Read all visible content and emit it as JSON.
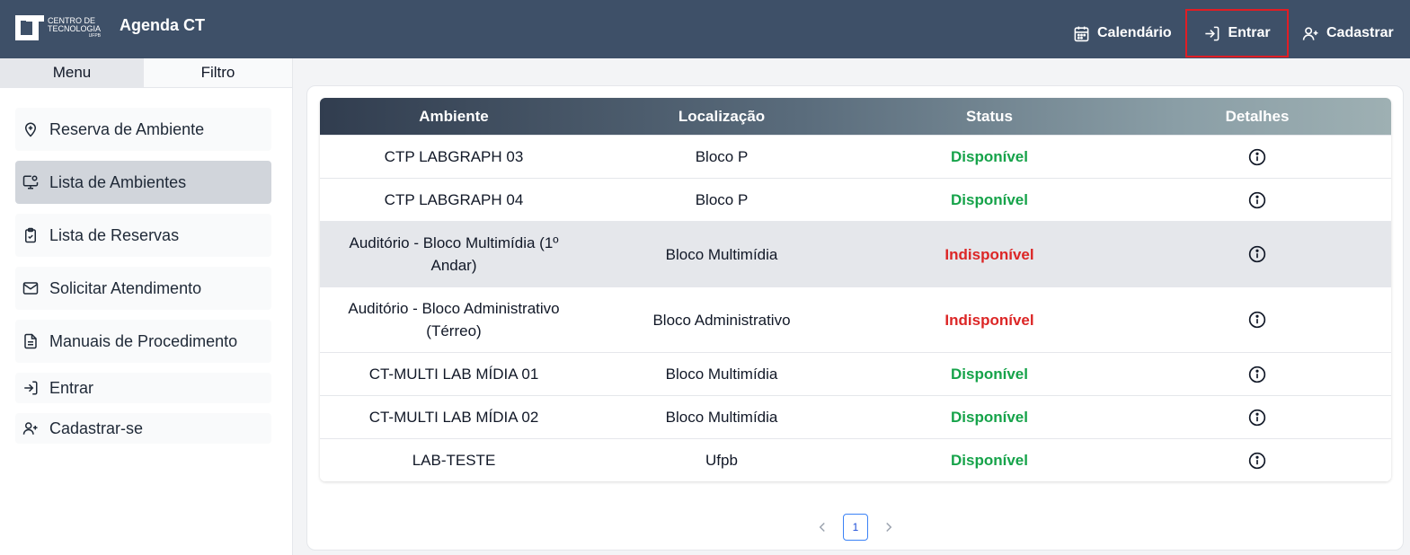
{
  "header": {
    "logo_line1": "CENTRO DE",
    "logo_line2": "TECNOLOGIA",
    "logo_line3": "UFPB",
    "app_title": "Agenda CT",
    "nav": {
      "calendar": "Calendário",
      "login": "Entrar",
      "register": "Cadastrar"
    }
  },
  "sidebar": {
    "tabs": [
      "Menu",
      "Filtro"
    ],
    "items": [
      {
        "label": "Reserva de Ambiente",
        "icon": "map-pin-icon"
      },
      {
        "label": "Lista de Ambientes",
        "icon": "monitor-icon"
      },
      {
        "label": "Lista de Reservas",
        "icon": "clipboard-icon"
      },
      {
        "label": "Solicitar Atendimento",
        "icon": "mail-icon"
      },
      {
        "label": "Manuais de Procedimento",
        "icon": "document-icon"
      },
      {
        "label": "Entrar",
        "icon": "login-icon"
      },
      {
        "label": "Cadastrar-se",
        "icon": "user-plus-icon"
      }
    ]
  },
  "table": {
    "headers": [
      "Ambiente",
      "Localização",
      "Status",
      "Detalhes"
    ],
    "rows": [
      {
        "ambiente": "CTP LABGRAPH 03",
        "localizacao": "Bloco P",
        "status": "Disponível"
      },
      {
        "ambiente": "CTP LABGRAPH 04",
        "localizacao": "Bloco P",
        "status": "Disponível"
      },
      {
        "ambiente": "Auditório - Bloco Multimídia (1º Andar)",
        "localizacao": "Bloco Multimídia",
        "status": "Indisponível"
      },
      {
        "ambiente": "Auditório - Bloco Administrativo (Térreo)",
        "localizacao": "Bloco Administrativo",
        "status": "Indisponível"
      },
      {
        "ambiente": "CT-MULTI LAB MÍDIA 01",
        "localizacao": "Bloco Multimídia",
        "status": "Disponível"
      },
      {
        "ambiente": "CT-MULTI LAB MÍDIA 02",
        "localizacao": "Bloco Multimídia",
        "status": "Disponível"
      },
      {
        "ambiente": "LAB-TESTE",
        "localizacao": "Ufpb",
        "status": "Disponível"
      }
    ]
  },
  "pagination": {
    "current_page": "1"
  },
  "colors": {
    "header_bg": "#3e5068",
    "available": "#16a34a",
    "unavailable": "#dc2626",
    "highlight_border": "#e11d24"
  }
}
